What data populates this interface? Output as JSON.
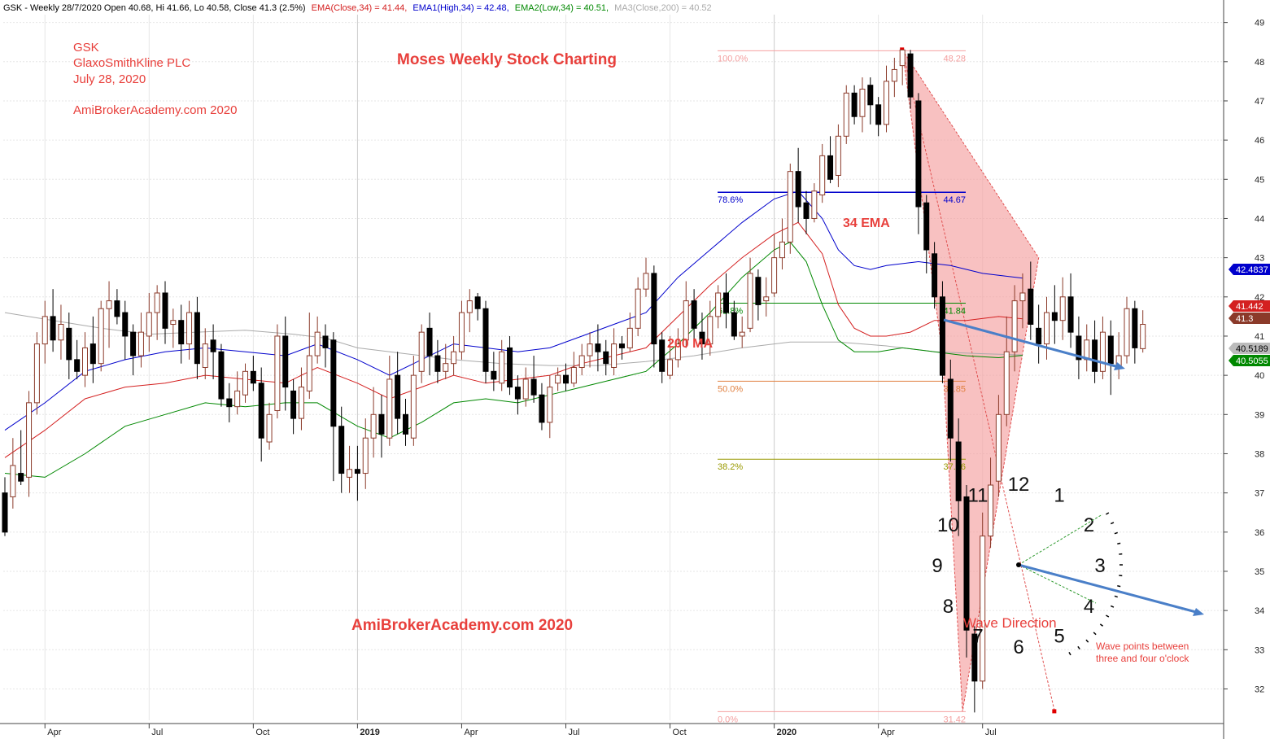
{
  "header": {
    "ticker_part": "GSK - Weekly 28/7/2020 Open 40.68, Hi 41.66, Lo 40.58, Close 41.3 (2.5%)",
    "ema_part": "EMA(Close,34) = 41.44,",
    "ema1_part": "EMA1(High,34) = 42.48,",
    "ema2_part": "EMA2(Low,34) = 40.51,",
    "ma3_part": "MA3(Close,200) = 40.52"
  },
  "notes": {
    "ticker": "GSK",
    "company": "GlaxoSmithKline PLC",
    "date": "July 28, 2020",
    "site_top": "AmiBrokerAcademy.com  2020",
    "title": "Moses Weekly Stock Charting",
    "site_bottom": "AmiBrokerAcademy.com  2020",
    "ema_label": "34 EMA",
    "ma_label": "200 MA",
    "wave_direction": "Wave Direction",
    "wave_note_line1": "Wave points between",
    "wave_note_line2": "three and four o'clock"
  },
  "colors": {
    "up_candle": "#8b3a2a",
    "down_candle": "#000000",
    "ema_close": "#d42020",
    "ema_high": "#0000cc",
    "ema_low": "#008800",
    "ma200": "#aaaaaa",
    "fib_fill": "#f4a0a0",
    "annotation_red": "#e8403c",
    "arrow_blue": "#4a7fc8"
  },
  "chart_data": {
    "type": "candlestick",
    "ylim": [
      31.2,
      49.2
    ],
    "y_ticks": [
      32,
      33,
      34,
      35,
      36,
      37,
      38,
      39,
      40,
      41,
      42,
      43,
      44,
      45,
      46,
      47,
      48,
      49
    ],
    "x_labels": [
      {
        "week": 5,
        "label": "Apr",
        "bold": false
      },
      {
        "week": 18,
        "label": "Jul",
        "bold": false
      },
      {
        "week": 31,
        "label": "Oct",
        "bold": false
      },
      {
        "week": 44,
        "label": "2019",
        "bold": true
      },
      {
        "week": 57,
        "label": "Apr",
        "bold": false
      },
      {
        "week": 70,
        "label": "Jul",
        "bold": false
      },
      {
        "week": 83,
        "label": "Oct",
        "bold": false
      },
      {
        "week": 96,
        "label": "2020",
        "bold": true
      },
      {
        "week": 109,
        "label": "Apr",
        "bold": false
      },
      {
        "week": 122,
        "label": "Jul",
        "bold": false
      }
    ],
    "price_tags": [
      {
        "value": 42.4837,
        "label": "42.4837",
        "bg": "#0000cc",
        "fg": "#ffffff"
      },
      {
        "value": 41.442,
        "label": "41.442",
        "bg": "#d42020",
        "fg": "#ffffff"
      },
      {
        "value": 41.3,
        "label": "41.3",
        "bg": "#8b3a2a",
        "fg": "#ffffff"
      },
      {
        "value": 40.5189,
        "label": "40.5189",
        "bg": "#bbbbbb",
        "fg": "#000000"
      },
      {
        "value": 40.5055,
        "label": "40.5055",
        "bg": "#008800",
        "fg": "#ffffff"
      }
    ],
    "fib_levels": [
      {
        "pct": "100.0%",
        "value": 48.28,
        "label": "48.28",
        "color": "#f4a0a0"
      },
      {
        "pct": "78.6%",
        "value": 44.67,
        "label": "44.67",
        "color": "#0000cc"
      },
      {
        "pct": "61.8%",
        "value": 41.84,
        "label": "41.84",
        "color": "#008800"
      },
      {
        "pct": "50.0%",
        "value": 39.85,
        "label": "39.85",
        "color": "#e08040"
      },
      {
        "pct": "38.2%",
        "value": 37.86,
        "label": "37.86",
        "color": "#999900"
      },
      {
        "pct": "0.0%",
        "value": 31.42,
        "label": "31.42",
        "color": "#f4a0a0"
      }
    ],
    "ema_close": [
      [
        0,
        37.9
      ],
      [
        5,
        38.6
      ],
      [
        10,
        39.4
      ],
      [
        15,
        39.7
      ],
      [
        20,
        39.8
      ],
      [
        25,
        40.0
      ],
      [
        30,
        39.9
      ],
      [
        35,
        39.8
      ],
      [
        39,
        40.2
      ],
      [
        44,
        39.8
      ],
      [
        48,
        39.4
      ],
      [
        52,
        39.7
      ],
      [
        56,
        40.0
      ],
      [
        60,
        39.8
      ],
      [
        64,
        39.9
      ],
      [
        68,
        40.0
      ],
      [
        72,
        40.3
      ],
      [
        76,
        40.5
      ],
      [
        80,
        40.7
      ],
      [
        84,
        41.5
      ],
      [
        88,
        42.3
      ],
      [
        92,
        43.0
      ],
      [
        96,
        43.6
      ],
      [
        99,
        43.9
      ],
      [
        102,
        43.1
      ],
      [
        104,
        41.8
      ],
      [
        106,
        41.2
      ],
      [
        108,
        41.0
      ],
      [
        110,
        41.0
      ],
      [
        113,
        41.1
      ],
      [
        116,
        41.4
      ],
      [
        120,
        41.4
      ],
      [
        124,
        41.5
      ],
      [
        127,
        41.44
      ]
    ],
    "ema_high": [
      [
        0,
        38.6
      ],
      [
        5,
        39.3
      ],
      [
        10,
        40.1
      ],
      [
        15,
        40.4
      ],
      [
        20,
        40.6
      ],
      [
        25,
        40.7
      ],
      [
        30,
        40.6
      ],
      [
        35,
        40.5
      ],
      [
        39,
        40.8
      ],
      [
        44,
        40.4
      ],
      [
        48,
        40.0
      ],
      [
        52,
        40.4
      ],
      [
        56,
        40.8
      ],
      [
        60,
        40.7
      ],
      [
        64,
        40.6
      ],
      [
        68,
        40.7
      ],
      [
        72,
        41.0
      ],
      [
        76,
        41.3
      ],
      [
        80,
        41.6
      ],
      [
        84,
        42.5
      ],
      [
        88,
        43.2
      ],
      [
        92,
        43.9
      ],
      [
        96,
        44.5
      ],
      [
        99,
        44.7
      ],
      [
        102,
        44.0
      ],
      [
        104,
        43.2
      ],
      [
        106,
        42.8
      ],
      [
        108,
        42.7
      ],
      [
        110,
        42.8
      ],
      [
        114,
        42.9
      ],
      [
        118,
        42.8
      ],
      [
        122,
        42.6
      ],
      [
        127,
        42.48
      ]
    ],
    "ema_low": [
      [
        0,
        37.5
      ],
      [
        5,
        37.4
      ],
      [
        10,
        38.0
      ],
      [
        15,
        38.7
      ],
      [
        20,
        39.0
      ],
      [
        25,
        39.3
      ],
      [
        30,
        39.2
      ],
      [
        35,
        39.3
      ],
      [
        39,
        39.3
      ],
      [
        44,
        38.7
      ],
      [
        48,
        38.4
      ],
      [
        52,
        38.8
      ],
      [
        56,
        39.3
      ],
      [
        60,
        39.4
      ],
      [
        64,
        39.3
      ],
      [
        68,
        39.5
      ],
      [
        72,
        39.7
      ],
      [
        76,
        39.9
      ],
      [
        80,
        40.1
      ],
      [
        84,
        40.8
      ],
      [
        88,
        41.6
      ],
      [
        92,
        42.5
      ],
      [
        96,
        43.2
      ],
      [
        98,
        43.4
      ],
      [
        100,
        42.9
      ],
      [
        102,
        41.8
      ],
      [
        104,
        40.9
      ],
      [
        106,
        40.6
      ],
      [
        109,
        40.6
      ],
      [
        112,
        40.7
      ],
      [
        116,
        40.6
      ],
      [
        120,
        40.5
      ],
      [
        124,
        40.45
      ],
      [
        127,
        40.51
      ]
    ],
    "ma200": [
      [
        0,
        41.6
      ],
      [
        6,
        41.4
      ],
      [
        12,
        41.2
      ],
      [
        18,
        41.05
      ],
      [
        24,
        41.1
      ],
      [
        30,
        41.15
      ],
      [
        36,
        41.05
      ],
      [
        40,
        40.95
      ],
      [
        44,
        40.7
      ],
      [
        50,
        40.55
      ],
      [
        56,
        40.4
      ],
      [
        62,
        40.3
      ],
      [
        68,
        40.25
      ],
      [
        74,
        40.25
      ],
      [
        80,
        40.35
      ],
      [
        86,
        40.5
      ],
      [
        92,
        40.7
      ],
      [
        98,
        40.85
      ],
      [
        104,
        40.85
      ],
      [
        110,
        40.75
      ],
      [
        116,
        40.6
      ],
      [
        122,
        40.55
      ],
      [
        127,
        40.52
      ]
    ],
    "candles": [
      [
        37,
        36.0,
        37.4,
        35.9
      ],
      [
        36.9,
        37.7,
        38.4,
        36.6
      ],
      [
        37.5,
        37.3,
        38.6,
        37.2
      ],
      [
        37.4,
        39.3,
        39.6,
        36.9
      ],
      [
        39.3,
        40.8,
        41.1,
        39.0
      ],
      [
        40.8,
        41.5,
        41.9,
        40.3
      ],
      [
        41.5,
        40.9,
        42.2,
        40.6
      ],
      [
        40.9,
        41.3,
        41.8,
        40.4
      ],
      [
        41.2,
        40.4,
        41.6,
        39.9
      ],
      [
        40.4,
        40.1,
        40.9,
        39.9
      ],
      [
        40.0,
        40.7,
        41.1,
        39.7
      ],
      [
        40.8,
        40.3,
        41.5,
        39.8
      ],
      [
        40.3,
        41.7,
        41.9,
        40.1
      ],
      [
        41.7,
        41.9,
        42.4,
        40.7
      ],
      [
        41.9,
        41.5,
        42.2,
        41.3
      ],
      [
        41.6,
        41.0,
        41.9,
        40.4
      ],
      [
        41.1,
        40.5,
        41.3,
        40.0
      ],
      [
        40.5,
        41.1,
        41.6,
        40.2
      ],
      [
        41.0,
        41.6,
        42.1,
        40.6
      ],
      [
        41.6,
        42.1,
        42.3,
        40.9
      ],
      [
        42.1,
        41.2,
        42.4,
        40.8
      ],
      [
        41.3,
        41.4,
        41.7,
        40.7
      ],
      [
        41.4,
        40.8,
        41.8,
        40.3
      ],
      [
        40.8,
        41.6,
        41.9,
        40.4
      ],
      [
        41.6,
        40.3,
        42.0,
        39.9
      ],
      [
        40.2,
        40.8,
        41.2,
        39.9
      ],
      [
        40.9,
        40.6,
        41.3,
        39.9
      ],
      [
        40.6,
        39.4,
        40.8,
        39.2
      ],
      [
        39.4,
        39.2,
        39.8,
        38.8
      ],
      [
        39.2,
        39.6,
        40.1,
        39.0
      ],
      [
        39.5,
        40.1,
        40.3,
        39.3
      ],
      [
        40.1,
        39.8,
        40.5,
        39.6
      ],
      [
        39.8,
        38.4,
        40.2,
        37.8
      ],
      [
        38.3,
        39.0,
        39.3,
        38.1
      ],
      [
        39.1,
        41.0,
        41.3,
        38.9
      ],
      [
        41.0,
        39.7,
        41.5,
        39.1
      ],
      [
        39.6,
        38.9,
        39.9,
        38.5
      ],
      [
        38.9,
        39.7,
        40.2,
        38.6
      ],
      [
        39.6,
        40.5,
        41.6,
        39.4
      ],
      [
        40.5,
        41.1,
        41.5,
        40.3
      ],
      [
        41.0,
        40.7,
        41.3,
        40.2
      ],
      [
        40.9,
        38.7,
        41.1,
        37.3
      ],
      [
        38.7,
        37.5,
        39.2,
        37.0
      ],
      [
        37.4,
        37.6,
        38.2,
        37.0
      ],
      [
        37.6,
        37.5,
        38.2,
        36.8
      ],
      [
        37.5,
        38.4,
        38.9,
        37.1
      ],
      [
        38.4,
        39.0,
        39.7,
        37.9
      ],
      [
        39.0,
        38.5,
        39.5,
        37.9
      ],
      [
        38.4,
        39.9,
        40.5,
        38.2
      ],
      [
        40.0,
        38.9,
        40.6,
        38.5
      ],
      [
        39.0,
        38.5,
        39.4,
        38.2
      ],
      [
        38.4,
        40.0,
        40.5,
        38.2
      ],
      [
        40.1,
        41.1,
        41.3,
        39.8
      ],
      [
        41.2,
        40.5,
        41.6,
        40.0
      ],
      [
        40.5,
        40.1,
        40.9,
        39.8
      ],
      [
        40.1,
        40.3,
        40.8,
        39.9
      ],
      [
        40.3,
        40.6,
        41.0,
        40.0
      ],
      [
        40.6,
        41.6,
        41.9,
        40.4
      ],
      [
        41.6,
        41.9,
        42.2,
        41.1
      ],
      [
        42.0,
        41.7,
        42.1,
        41.4
      ],
      [
        41.7,
        40.1,
        41.9,
        39.8
      ],
      [
        40.1,
        39.9,
        40.6,
        39.6
      ],
      [
        39.8,
        40.6,
        40.9,
        39.6
      ],
      [
        40.7,
        39.7,
        41.0,
        39.5
      ],
      [
        39.7,
        39.4,
        40.0,
        39.0
      ],
      [
        39.4,
        39.9,
        40.2,
        39.2
      ],
      [
        39.9,
        39.5,
        40.5,
        39.3
      ],
      [
        39.5,
        38.8,
        39.8,
        38.6
      ],
      [
        38.8,
        39.7,
        40.0,
        38.4
      ],
      [
        39.8,
        40.0,
        40.2,
        39.6
      ],
      [
        40.0,
        39.8,
        40.3,
        39.6
      ],
      [
        39.8,
        40.2,
        40.6,
        39.7
      ],
      [
        40.2,
        40.5,
        40.8,
        40.0
      ],
      [
        40.5,
        40.8,
        41.1,
        40.2
      ],
      [
        40.8,
        40.6,
        41.3,
        40.1
      ],
      [
        40.6,
        40.3,
        40.9,
        40.0
      ],
      [
        40.2,
        40.8,
        41.2,
        40.0
      ],
      [
        40.8,
        40.7,
        41.0,
        40.4
      ],
      [
        40.7,
        41.2,
        41.6,
        40.6
      ],
      [
        41.2,
        42.2,
        42.5,
        41.0
      ],
      [
        42.2,
        42.6,
        43.0,
        42.0
      ],
      [
        42.6,
        40.8,
        42.8,
        40.2
      ],
      [
        40.9,
        40.1,
        41.1,
        39.8
      ],
      [
        40.0,
        40.4,
        41.0,
        39.9
      ],
      [
        40.4,
        40.8,
        41.2,
        40.2
      ],
      [
        40.9,
        41.9,
        42.4,
        40.7
      ],
      [
        41.9,
        41.2,
        42.2,
        40.8
      ],
      [
        41.1,
        40.8,
        41.6,
        40.4
      ],
      [
        40.8,
        41.5,
        41.9,
        40.5
      ],
      [
        41.5,
        42.1,
        42.3,
        41.2
      ],
      [
        42.1,
        41.6,
        42.6,
        41.2
      ],
      [
        41.6,
        41.0,
        41.9,
        40.9
      ],
      [
        41.0,
        41.1,
        41.5,
        40.7
      ],
      [
        41.2,
        42.6,
        43.0,
        41.1
      ],
      [
        42.5,
        41.8,
        42.7,
        41.4
      ],
      [
        41.9,
        42.0,
        42.5,
        41.5
      ],
      [
        42.1,
        43.0,
        43.6,
        42.0
      ],
      [
        43.0,
        43.4,
        44.0,
        42.7
      ],
      [
        43.4,
        45.2,
        45.4,
        43.1
      ],
      [
        45.2,
        44.3,
        45.8,
        43.9
      ],
      [
        44.4,
        44.0,
        44.7,
        43.6
      ],
      [
        44.0,
        44.7,
        44.9,
        43.9
      ],
      [
        44.6,
        45.6,
        45.9,
        44.4
      ],
      [
        45.6,
        45.0,
        46.1,
        44.9
      ],
      [
        45.1,
        46.1,
        46.4,
        44.8
      ],
      [
        46.1,
        47.2,
        47.4,
        45.9
      ],
      [
        47.2,
        46.6,
        47.4,
        46.4
      ],
      [
        46.6,
        47.3,
        47.6,
        46.2
      ],
      [
        47.4,
        46.9,
        47.6,
        46.4
      ],
      [
        46.9,
        46.4,
        47.1,
        46.1
      ],
      [
        46.4,
        47.5,
        47.9,
        46.2
      ],
      [
        47.5,
        47.8,
        48.1,
        47.1
      ],
      [
        47.9,
        48.3,
        48.3,
        47.4
      ],
      [
        48.2,
        47.1,
        48.3,
        46.8
      ],
      [
        47.0,
        44.3,
        47.2,
        43.6
      ],
      [
        44.4,
        43.2,
        44.6,
        42.6
      ],
      [
        43.1,
        42.0,
        43.4,
        41.7
      ],
      [
        42.0,
        40.0,
        42.4,
        39.8
      ],
      [
        39.9,
        38.4,
        40.4,
        37.8
      ],
      [
        38.3,
        36.8,
        38.9,
        35.9
      ],
      [
        36.9,
        33.5,
        37.2,
        32.8
      ],
      [
        33.4,
        32.2,
        33.6,
        31.4
      ],
      [
        32.2,
        35.9,
        36.5,
        32.0
      ],
      [
        35.9,
        37.2,
        37.9,
        35.6
      ],
      [
        37.3,
        39.0,
        39.5,
        36.9
      ],
      [
        39.0,
        40.6,
        41.5,
        38.7
      ],
      [
        40.6,
        41.9,
        42.3,
        40.1
      ],
      [
        41.9,
        42.1,
        42.6,
        41.2
      ],
      [
        42.2,
        41.3,
        42.9,
        40.9
      ],
      [
        41.2,
        40.8,
        41.8,
        40.3
      ],
      [
        40.8,
        41.6,
        42.0,
        40.4
      ],
      [
        41.6,
        41.4,
        42.3,
        40.8
      ],
      [
        41.4,
        42.0,
        42.5,
        40.9
      ],
      [
        42.0,
        41.1,
        42.6,
        40.7
      ],
      [
        41.0,
        40.4,
        41.5,
        39.9
      ],
      [
        40.4,
        40.9,
        41.3,
        40.1
      ],
      [
        40.9,
        40.1,
        41.4,
        39.8
      ],
      [
        40.1,
        41.1,
        41.5,
        39.9
      ],
      [
        41.0,
        40.3,
        41.4,
        39.5
      ],
      [
        40.2,
        40.5,
        41.1,
        39.9
      ],
      [
        40.5,
        41.7,
        42.0,
        40.3
      ],
      [
        41.7,
        40.7,
        41.9,
        40.3
      ],
      [
        40.68,
        41.3,
        41.66,
        40.58
      ]
    ]
  }
}
